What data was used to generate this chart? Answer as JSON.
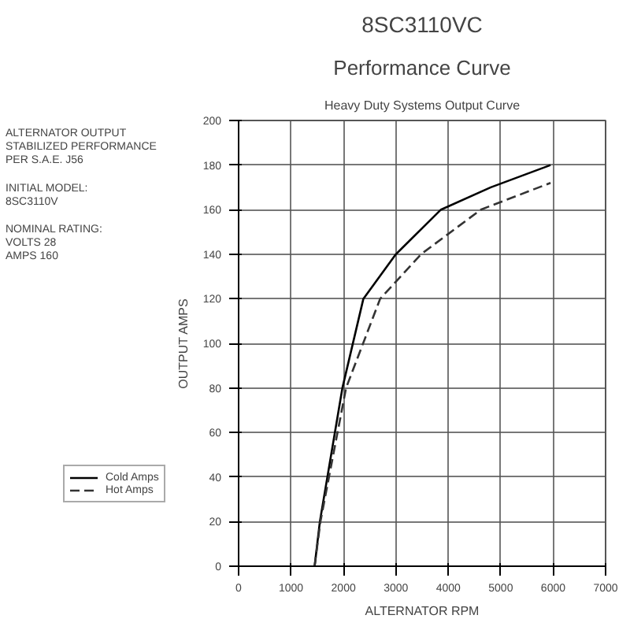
{
  "chart_data": {
    "type": "line",
    "title": "8SC3110VC",
    "subtitle": "Performance Curve",
    "annotations": [
      "Heavy Duty Systems Output Curve",
      "ALTERNATOR OUTPUT\nSTABILIZED PERFORMANCE\nPER S.A.E. J56",
      "INITIAL MODEL:\n8SC3110V",
      "NOMINAL RATING:\nVOLTS 28\nAMPS 160"
    ],
    "xlabel": "ALTERNATOR RPM",
    "ylabel": "OUTPUT AMPS",
    "series": [
      {
        "name": "Cold Amps",
        "color": "#000000",
        "line_style": "solid",
        "x": [
          1450,
          1550,
          1980,
          2380,
          3000,
          3860,
          4810,
          5950
        ],
        "values": [
          0,
          20,
          80,
          120,
          140,
          160,
          170,
          180
        ]
      },
      {
        "name": "Hot Amps",
        "color": "#333333",
        "line_style": "dashed",
        "x": [
          1450,
          1560,
          2050,
          2700,
          3480,
          4620,
          5950
        ],
        "values": [
          0,
          20,
          80,
          120,
          140,
          160,
          172
        ]
      }
    ],
    "xlim": [
      0,
      7000
    ],
    "xticks": [
      0,
      1000,
      2000,
      3000,
      4000,
      5000,
      6000,
      7000
    ],
    "ylim": [
      0,
      200
    ],
    "yticks": [
      0,
      20,
      40,
      60,
      80,
      100,
      120,
      140,
      160,
      180,
      200
    ],
    "grid": true,
    "legend": "bottom left"
  }
}
